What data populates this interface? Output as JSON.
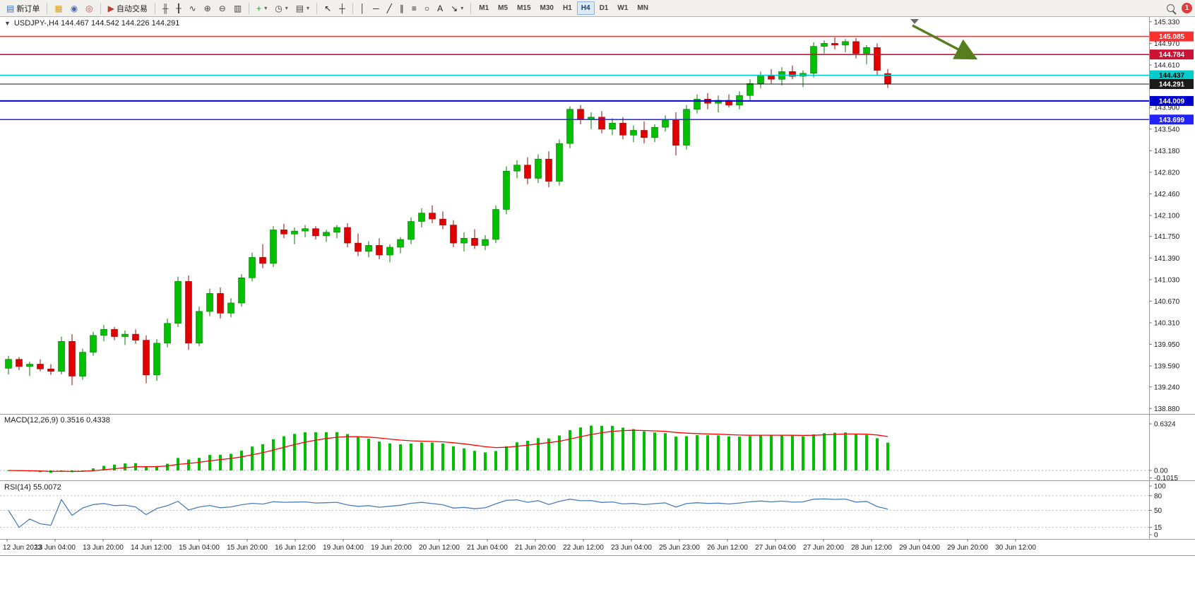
{
  "toolbar": {
    "items": [
      {
        "t": "btn",
        "name": "new-order-button",
        "icon": "order-form-icon",
        "glyph": "▤",
        "gc": "#3d6fb4",
        "label": "新订单"
      },
      {
        "t": "sep"
      },
      {
        "t": "btn",
        "name": "charts-button",
        "icon": "chart-window-icon",
        "glyph": "▦",
        "gc": "#d9a018"
      },
      {
        "t": "btn",
        "name": "profile-button",
        "icon": "profile-icon",
        "glyph": "◉",
        "gc": "#4a6da8"
      },
      {
        "t": "btn",
        "name": "community-button",
        "icon": "community-icon",
        "glyph": "◎",
        "gc": "#b05050"
      },
      {
        "t": "sep"
      },
      {
        "t": "btn",
        "name": "auto-trading-button",
        "icon": "auto-trading-icon",
        "glyph": "▶",
        "gc": "#c0392b",
        "label": "自动交易"
      },
      {
        "t": "sep"
      },
      {
        "t": "btn",
        "name": "bar-chart-button",
        "icon": "bar-chart-icon",
        "glyph": "╫",
        "gc": "#444444"
      },
      {
        "t": "btn",
        "name": "candlestick-chart-button",
        "icon": "candlestick-icon",
        "glyph": "╂",
        "gc": "#444444"
      },
      {
        "t": "btn",
        "name": "line-chart-button",
        "icon": "line-chart-icon",
        "glyph": "∿",
        "gc": "#444444"
      },
      {
        "t": "btn",
        "name": "zoom-in-button",
        "icon": "zoom-in-icon",
        "glyph": "⊕",
        "gc": "#444444"
      },
      {
        "t": "btn",
        "name": "zoom-out-button",
        "icon": "zoom-out-icon",
        "glyph": "⊖",
        "gc": "#444444"
      },
      {
        "t": "btn",
        "name": "tile-windows-button",
        "icon": "tile-windows-icon",
        "glyph": "▥",
        "gc": "#444444"
      },
      {
        "t": "sep"
      },
      {
        "t": "btn",
        "name": "indicators-button",
        "icon": "indicators-icon",
        "glyph": "+",
        "gc": "#1f9d2f",
        "caret": true
      },
      {
        "t": "btn",
        "name": "periods-button",
        "icon": "clock-icon",
        "glyph": "◷",
        "gc": "#444444",
        "caret": true
      },
      {
        "t": "btn",
        "name": "templates-button",
        "icon": "template-icon",
        "glyph": "▤",
        "gc": "#444444",
        "caret": true
      },
      {
        "t": "sep"
      },
      {
        "t": "btn",
        "name": "cursor-button",
        "icon": "cursor-icon",
        "glyph": "↖",
        "gc": "#222222"
      },
      {
        "t": "btn",
        "name": "crosshair-button",
        "icon": "crosshair-icon",
        "glyph": "┼",
        "gc": "#222222"
      },
      {
        "t": "sep"
      },
      {
        "t": "btn",
        "name": "vertical-line-button",
        "icon": "vertical-line-icon",
        "glyph": "│",
        "gc": "#222222"
      },
      {
        "t": "btn",
        "name": "horizontal-line-button",
        "icon": "horizontal-line-icon",
        "glyph": "─",
        "gc": "#222222"
      },
      {
        "t": "btn",
        "name": "trendline-button",
        "icon": "trendline-icon",
        "glyph": "╱",
        "gc": "#222222"
      },
      {
        "t": "btn",
        "name": "channel-button",
        "icon": "channel-icon",
        "glyph": "∥",
        "gc": "#222222"
      },
      {
        "t": "btn",
        "name": "fibonacci-button",
        "icon": "fibonacci-icon",
        "glyph": "≡",
        "gc": "#222222"
      },
      {
        "t": "btn",
        "name": "shapes-button",
        "icon": "shapes-icon",
        "glyph": "○",
        "gc": "#222222"
      },
      {
        "t": "btn",
        "name": "text-button",
        "icon": "text-icon",
        "glyph": "A",
        "gc": "#222222"
      },
      {
        "t": "btn",
        "name": "arrows-button",
        "icon": "arrow-tool-icon",
        "glyph": "↘",
        "gc": "#222222",
        "caret": true
      },
      {
        "t": "sep"
      },
      {
        "t": "tfgroup"
      },
      {
        "t": "spacer"
      },
      {
        "t": "btn",
        "name": "search-button",
        "icon": "search-icon",
        "glyph": "mag"
      },
      {
        "t": "badge",
        "name": "notification-badge",
        "label": "1",
        "color": "#e03c3c"
      }
    ],
    "timeframes": [
      "M1",
      "M5",
      "M15",
      "M30",
      "H1",
      "H4",
      "D1",
      "W1",
      "MN"
    ],
    "active_timeframe": "H4"
  },
  "chart": {
    "toggle_glyph": "▼",
    "symbol_ohlc": "USDJPY-,H4  144.467 144.542 144.226 144.291",
    "price_axis": [
      "145.330",
      "144.970",
      "144.610",
      "144.250",
      "143.900",
      "143.540",
      "143.180",
      "142.820",
      "142.460",
      "142.100",
      "141.750",
      "141.390",
      "141.030",
      "140.670",
      "140.310",
      "139.950",
      "139.590",
      "139.240",
      "138.880"
    ],
    "levels": [
      {
        "price": "145.085",
        "color": "#ff3030",
        "text": "#ffffff",
        "w": 1.6
      },
      {
        "price": "144.784",
        "color": "#cc1133",
        "text": "#ffffff",
        "w": 1.6
      },
      {
        "price": "144.437",
        "color": "#00cccc",
        "text": "#000000",
        "w": 1.6
      },
      {
        "price": "144.291",
        "color": "#1a1a1a",
        "text": "#ffffff",
        "w": 1.1,
        "current": true
      },
      {
        "price": "144.009",
        "color": "#0000cc",
        "text": "#ffffff",
        "w": 2
      },
      {
        "price": "143.699",
        "color": "#2222ff",
        "text": "#ffffff",
        "w": 1.6
      }
    ],
    "time_axis": [
      "12 Jun 2023",
      "13 Jun 04:00",
      "13 Jun 20:00",
      "14 Jun 12:00",
      "15 Jun 04:00",
      "15 Jun 20:00",
      "16 Jun 12:00",
      "19 Jun 04:00",
      "19 Jun 20:00",
      "20 Jun 12:00",
      "21 Jun 04:00",
      "21 Jun 20:00",
      "22 Jun 12:00",
      "23 Jun 04:00",
      "25 Jun 23:00",
      "26 Jun 12:00",
      "27 Jun 04:00",
      "27 Jun 20:00",
      "28 Jun 12:00",
      "29 Jun 04:00",
      "29 Jun 20:00",
      "30 Jun 12:00"
    ]
  },
  "macd": {
    "label": "MACD(12,26,9) 0.3516 0.4338",
    "axis": [
      "0.6324",
      "0.00",
      "-0.1015"
    ],
    "histogram_color": "#00c000",
    "signal_color": "#ff0000"
  },
  "rsi": {
    "label": "RSI(14) 55.0072",
    "axis": [
      "100",
      "80",
      "50",
      "15",
      "0"
    ],
    "levels": [
      80,
      50,
      15
    ],
    "line_color": "#4a7ebb"
  },
  "chart_data": {
    "type": "candlestick",
    "symbol": "USDJPY-",
    "timeframe": "H4",
    "current_bar": {
      "open": 144.467,
      "high": 144.542,
      "low": 144.226,
      "close": 144.291
    },
    "ylim": [
      138.79,
      145.41
    ],
    "bull_color": "#00c000",
    "bear_color": "#e00000",
    "hlines": [
      145.085,
      144.784,
      144.437,
      144.291,
      144.009,
      143.699
    ],
    "indicators": [
      {
        "name": "MACD",
        "params": [
          12,
          26,
          9
        ],
        "values": [
          0.3516,
          0.4338
        ],
        "range": [
          -0.1015,
          0.6324
        ]
      },
      {
        "name": "RSI",
        "params": [
          14
        ],
        "value": 55.0072
      }
    ],
    "annotations": [
      {
        "type": "arrow",
        "color": "#567d1e",
        "from_xy": [
          1292,
          12
        ],
        "to_xy": [
          1378,
          57
        ]
      },
      {
        "type": "shift-marker",
        "x": 1295
      }
    ],
    "candles": [
      [
        139.55,
        139.76,
        139.45,
        139.7
      ],
      [
        139.7,
        139.74,
        139.52,
        139.58
      ],
      [
        139.58,
        139.66,
        139.42,
        139.62
      ],
      [
        139.62,
        139.7,
        139.5,
        139.54
      ],
      [
        139.54,
        139.62,
        139.44,
        139.5
      ],
      [
        139.5,
        140.08,
        139.45,
        140.0
      ],
      [
        140.0,
        140.12,
        139.27,
        139.42
      ],
      [
        139.42,
        139.88,
        139.36,
        139.82
      ],
      [
        139.82,
        140.16,
        139.76,
        140.1
      ],
      [
        140.1,
        140.27,
        140.0,
        140.2
      ],
      [
        140.2,
        140.24,
        140.02,
        140.08
      ],
      [
        140.08,
        140.18,
        139.94,
        140.12
      ],
      [
        140.12,
        140.2,
        139.96,
        140.02
      ],
      [
        140.02,
        140.1,
        139.3,
        139.44
      ],
      [
        139.44,
        140.04,
        139.34,
        139.97
      ],
      [
        139.97,
        140.38,
        139.9,
        140.3
      ],
      [
        140.3,
        141.08,
        140.24,
        141.0
      ],
      [
        141.0,
        141.1,
        139.86,
        139.97
      ],
      [
        139.97,
        140.58,
        139.92,
        140.5
      ],
      [
        140.5,
        140.88,
        140.42,
        140.8
      ],
      [
        140.8,
        140.9,
        140.38,
        140.47
      ],
      [
        140.47,
        140.72,
        140.4,
        140.64
      ],
      [
        140.64,
        141.12,
        140.58,
        141.06
      ],
      [
        141.06,
        141.48,
        141.0,
        141.4
      ],
      [
        141.4,
        141.62,
        141.22,
        141.3
      ],
      [
        141.3,
        141.92,
        141.24,
        141.86
      ],
      [
        141.86,
        141.96,
        141.72,
        141.79
      ],
      [
        141.79,
        141.9,
        141.62,
        141.84
      ],
      [
        141.84,
        141.94,
        141.74,
        141.88
      ],
      [
        141.88,
        141.92,
        141.7,
        141.76
      ],
      [
        141.76,
        141.86,
        141.66,
        141.82
      ],
      [
        141.82,
        141.94,
        141.72,
        141.9
      ],
      [
        141.9,
        141.97,
        141.57,
        141.64
      ],
      [
        141.64,
        141.8,
        141.42,
        141.5
      ],
      [
        141.5,
        141.67,
        141.4,
        141.6
      ],
      [
        141.6,
        141.72,
        141.37,
        141.44
      ],
      [
        141.44,
        141.62,
        141.32,
        141.57
      ],
      [
        141.57,
        141.74,
        141.47,
        141.7
      ],
      [
        141.7,
        142.07,
        141.62,
        142.0
      ],
      [
        142.0,
        142.22,
        141.9,
        142.14
      ],
      [
        142.14,
        142.27,
        141.97,
        142.04
      ],
      [
        142.04,
        142.17,
        141.87,
        141.94
      ],
      [
        141.94,
        142.02,
        141.57,
        141.64
      ],
      [
        141.64,
        141.82,
        141.5,
        141.72
      ],
      [
        141.72,
        141.87,
        141.54,
        141.6
      ],
      [
        141.6,
        141.77,
        141.52,
        141.7
      ],
      [
        141.7,
        142.27,
        141.64,
        142.2
      ],
      [
        142.2,
        142.92,
        142.12,
        142.84
      ],
      [
        142.84,
        143.02,
        142.72,
        142.94
      ],
      [
        142.94,
        143.07,
        142.62,
        142.72
      ],
      [
        142.72,
        143.12,
        142.64,
        143.04
      ],
      [
        143.04,
        143.17,
        142.57,
        142.67
      ],
      [
        142.67,
        143.37,
        142.6,
        143.3
      ],
      [
        143.3,
        143.92,
        143.22,
        143.87
      ],
      [
        143.87,
        143.94,
        143.62,
        143.7
      ],
      [
        143.7,
        143.82,
        143.54,
        143.74
      ],
      [
        143.74,
        143.84,
        143.47,
        143.54
      ],
      [
        143.54,
        143.72,
        143.44,
        143.64
      ],
      [
        143.64,
        143.74,
        143.37,
        143.44
      ],
      [
        143.44,
        143.6,
        143.32,
        143.52
      ],
      [
        143.52,
        143.67,
        143.3,
        143.4
      ],
      [
        143.4,
        143.62,
        143.32,
        143.57
      ],
      [
        143.57,
        143.77,
        143.5,
        143.7
      ],
      [
        143.7,
        143.82,
        143.1,
        143.27
      ],
      [
        143.27,
        143.94,
        143.2,
        143.87
      ],
      [
        143.87,
        144.12,
        143.8,
        144.04
      ],
      [
        144.04,
        144.14,
        143.87,
        143.97
      ],
      [
        143.97,
        144.1,
        143.82,
        144.02
      ],
      [
        144.02,
        144.12,
        143.9,
        143.94
      ],
      [
        143.94,
        144.17,
        143.87,
        144.1
      ],
      [
        144.1,
        144.37,
        144.02,
        144.3
      ],
      [
        144.3,
        144.5,
        144.22,
        144.44
      ],
      [
        144.44,
        144.54,
        144.3,
        144.37
      ],
      [
        144.37,
        144.57,
        144.27,
        144.5
      ],
      [
        144.5,
        144.6,
        144.37,
        144.42
      ],
      [
        144.42,
        144.52,
        144.24,
        144.47
      ],
      [
        144.47,
        144.99,
        144.4,
        144.92
      ],
      [
        144.92,
        145.02,
        144.8,
        144.97
      ],
      [
        144.97,
        145.07,
        144.87,
        144.94
      ],
      [
        144.94,
        145.04,
        144.82,
        145.0
      ],
      [
        145.0,
        145.06,
        144.72,
        144.8
      ],
      [
        144.8,
        144.94,
        144.62,
        144.9
      ],
      [
        144.9,
        144.97,
        144.44,
        144.52
      ],
      [
        144.467,
        144.542,
        144.226,
        144.291
      ]
    ]
  }
}
